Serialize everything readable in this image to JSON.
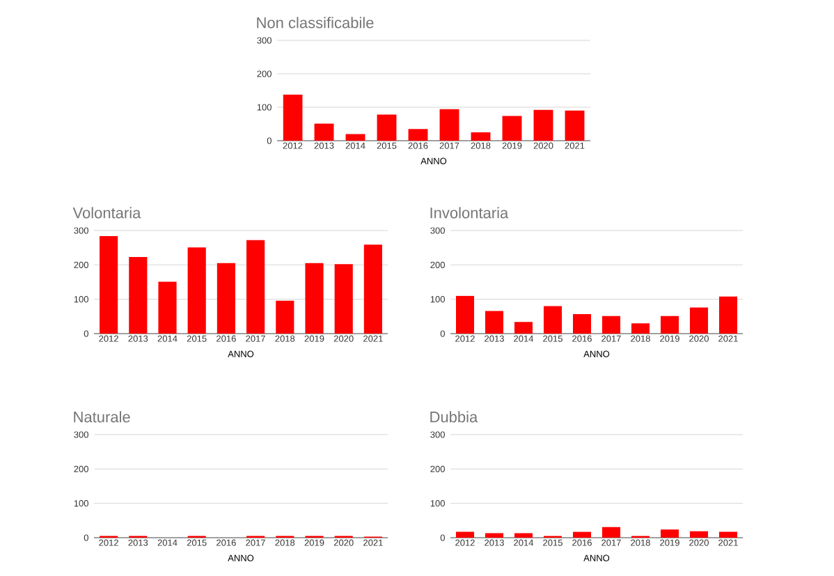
{
  "chart_data": [
    {
      "type": "bar",
      "title": "Non classificabile",
      "xlabel": "ANNO",
      "categories": [
        "2012",
        "2013",
        "2014",
        "2015",
        "2016",
        "2017",
        "2018",
        "2019",
        "2020",
        "2021"
      ],
      "values": [
        138,
        51,
        20,
        78,
        35,
        94,
        25,
        74,
        92,
        90
      ],
      "color": "#ff0000",
      "ylim": [
        0,
        300
      ],
      "yticks": [
        0,
        100,
        200,
        300
      ],
      "grid": "y"
    },
    {
      "type": "bar",
      "title": "Volontaria",
      "xlabel": "ANNO",
      "categories": [
        "2012",
        "2013",
        "2014",
        "2015",
        "2016",
        "2017",
        "2018",
        "2019",
        "2020",
        "2021"
      ],
      "values": [
        284,
        223,
        151,
        251,
        205,
        272,
        96,
        205,
        202,
        259
      ],
      "color": "#ff0000",
      "ylim": [
        0,
        300
      ],
      "yticks": [
        0,
        100,
        200,
        300
      ],
      "grid": "y"
    },
    {
      "type": "bar",
      "title": "Involontaria",
      "xlabel": "ANNO",
      "categories": [
        "2012",
        "2013",
        "2014",
        "2015",
        "2016",
        "2017",
        "2018",
        "2019",
        "2020",
        "2021"
      ],
      "values": [
        110,
        66,
        34,
        80,
        57,
        51,
        30,
        51,
        76,
        108
      ],
      "color": "#ff0000",
      "ylim": [
        0,
        300
      ],
      "yticks": [
        0,
        100,
        200,
        300
      ],
      "grid": "y"
    },
    {
      "type": "bar",
      "title": "Naturale",
      "xlabel": "ANNO",
      "categories": [
        "2012",
        "2013",
        "2014",
        "2015",
        "2016",
        "2017",
        "2018",
        "2019",
        "2020",
        "2021"
      ],
      "values": [
        5,
        5,
        0,
        5,
        0,
        5,
        5,
        5,
        5,
        3
      ],
      "color": "#ff0000",
      "ylim": [
        0,
        300
      ],
      "yticks": [
        0,
        100,
        200,
        300
      ],
      "grid": "y"
    },
    {
      "type": "bar",
      "title": "Dubbia",
      "xlabel": "ANNO",
      "categories": [
        "2012",
        "2013",
        "2014",
        "2015",
        "2016",
        "2017",
        "2018",
        "2019",
        "2020",
        "2021"
      ],
      "values": [
        17,
        13,
        13,
        5,
        17,
        31,
        5,
        24,
        19,
        17
      ],
      "color": "#ff0000",
      "ylim": [
        0,
        300
      ],
      "yticks": [
        0,
        100,
        200,
        300
      ],
      "grid": "y"
    }
  ]
}
